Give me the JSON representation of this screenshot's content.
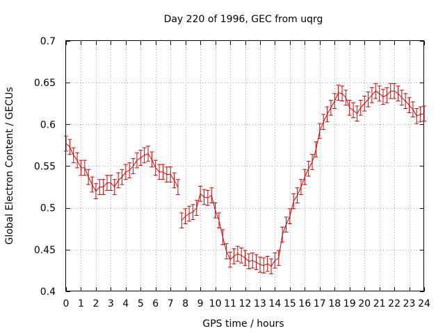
{
  "chart_data": {
    "type": "line",
    "title": "Day 220 of 1996, GEC from uqrg",
    "xlabel": "GPS time / hours",
    "ylabel": "Global Electron Content / GECUs",
    "xlim": [
      0,
      24
    ],
    "ylim": [
      0.4,
      0.7
    ],
    "x_ticks": [
      0,
      1,
      2,
      3,
      4,
      5,
      6,
      7,
      8,
      9,
      10,
      11,
      12,
      13,
      14,
      15,
      16,
      17,
      18,
      19,
      20,
      21,
      22,
      23,
      24
    ],
    "y_ticks": [
      0.4,
      0.45,
      0.5,
      0.55,
      0.6,
      0.65,
      0.7
    ],
    "y_tick_labels": [
      "0.4",
      "0.45",
      "0.5",
      "0.55",
      "0.6",
      "0.65",
      "0.7"
    ],
    "grid": true,
    "colors": {
      "series": "#cc0000"
    },
    "series": [
      {
        "error_bar": 0.009,
        "segments": [
          {
            "x": [
              0.0,
              0.25,
              0.5,
              0.75,
              1.0,
              1.25,
              1.5,
              1.75,
              2.0,
              2.25,
              2.5,
              2.75,
              3.0,
              3.25,
              3.5,
              3.75,
              4.0,
              4.25,
              4.5,
              4.75,
              5.0,
              5.25,
              5.5,
              5.75,
              6.0,
              6.25,
              6.5,
              6.75,
              7.0,
              7.25,
              7.5
            ],
            "y": [
              0.577,
              0.573,
              0.563,
              0.557,
              0.548,
              0.548,
              0.537,
              0.528,
              0.52,
              0.525,
              0.525,
              0.53,
              0.53,
              0.525,
              0.533,
              0.537,
              0.543,
              0.545,
              0.55,
              0.557,
              0.56,
              0.563,
              0.565,
              0.558,
              0.548,
              0.543,
              0.543,
              0.54,
              0.54,
              0.533,
              0.525
            ]
          },
          {
            "x": [
              7.75,
              8.0,
              8.25,
              8.5,
              8.75,
              9.0,
              9.25,
              9.5,
              9.75,
              10.0,
              10.25,
              10.5,
              10.75,
              11.0,
              11.25,
              11.5,
              11.75,
              12.0,
              12.25,
              12.5,
              12.75,
              13.0,
              13.25,
              13.5,
              13.75,
              14.0,
              14.25,
              14.5,
              14.75,
              15.0,
              15.25,
              15.5,
              15.75,
              16.0,
              16.25,
              16.5,
              16.75,
              17.0,
              17.25,
              17.5,
              17.75,
              18.0,
              18.25,
              18.5,
              18.75,
              19.0,
              19.25,
              19.5,
              19.75,
              20.0,
              20.25,
              20.5,
              20.75,
              21.0,
              21.25,
              21.5,
              21.75,
              22.0,
              22.25,
              22.5,
              22.75,
              23.0,
              23.25,
              23.5,
              23.75,
              24.0
            ],
            "y": [
              0.485,
              0.49,
              0.493,
              0.495,
              0.5,
              0.517,
              0.513,
              0.512,
              0.515,
              0.497,
              0.485,
              0.465,
              0.448,
              0.438,
              0.442,
              0.445,
              0.443,
              0.44,
              0.436,
              0.437,
              0.435,
              0.432,
              0.431,
              0.433,
              0.43,
              0.437,
              0.44,
              0.468,
              0.48,
              0.49,
              0.508,
              0.515,
              0.525,
              0.537,
              0.547,
              0.555,
              0.57,
              0.592,
              0.603,
              0.612,
              0.62,
              0.628,
              0.638,
              0.637,
              0.632,
              0.62,
              0.617,
              0.613,
              0.62,
              0.625,
              0.63,
              0.635,
              0.64,
              0.637,
              0.633,
              0.635,
              0.64,
              0.64,
              0.637,
              0.632,
              0.628,
              0.623,
              0.618,
              0.61,
              0.612,
              0.613
            ]
          }
        ]
      }
    ]
  }
}
